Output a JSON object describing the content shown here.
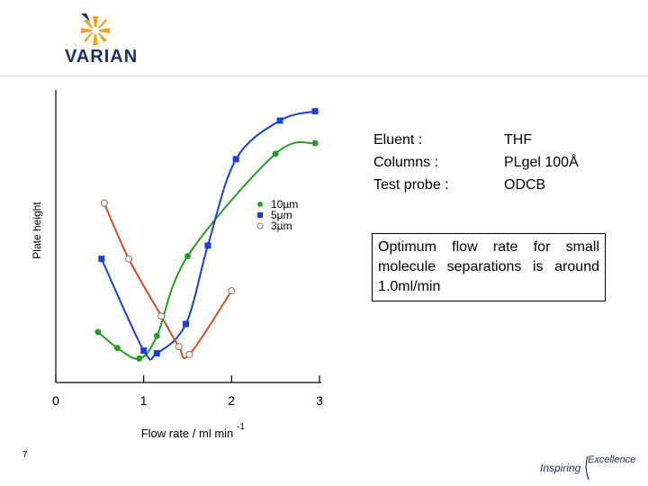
{
  "brand": {
    "name": "VARIAN",
    "footer_a": "Inspiring",
    "footer_b": "Excellence"
  },
  "page_number": "7",
  "info": {
    "rows": [
      {
        "label": "Eluent :",
        "value": "THF"
      },
      {
        "label": "Columns :",
        "value": "PLgel 100Å"
      },
      {
        "label": "Test probe :",
        "value": "ODCB"
      }
    ],
    "note": "Optimum flow rate for small molecule separations is around 1.0ml/min"
  },
  "colors": {
    "green": "#2a9a2a",
    "blue": "#1f3fcf",
    "orange": "#c8502a",
    "axis": "#000000",
    "brand_navy": "#1f2f5a"
  },
  "chart_data": {
    "type": "scatter",
    "title": "",
    "xlabel": "Flow rate / ml min",
    "xlabel_superscript": "-1",
    "ylabel": "Plate height",
    "xlim": [
      0,
      3
    ],
    "x_ticks": [
      "0",
      "1",
      "2",
      "3"
    ],
    "legend_position": "right",
    "series": [
      {
        "name": "10µm",
        "marker": "filled-circle",
        "color": "#2a9a2a",
        "points": [
          [
            0.48,
            3.8
          ],
          [
            0.7,
            2.6
          ],
          [
            0.95,
            1.8
          ],
          [
            1.15,
            3.5
          ],
          [
            1.5,
            9.5
          ],
          [
            2.5,
            17.2
          ],
          [
            2.95,
            18.0
          ]
        ]
      },
      {
        "name": "5µm",
        "marker": "filled-square",
        "color": "#1f3fcf",
        "points": [
          [
            0.52,
            9.3
          ],
          [
            1.0,
            2.4
          ],
          [
            1.15,
            2.2
          ],
          [
            1.48,
            4.4
          ],
          [
            1.73,
            10.3
          ],
          [
            2.05,
            16.8
          ],
          [
            2.55,
            19.7
          ],
          [
            2.95,
            20.4
          ]
        ]
      },
      {
        "name": "3µm",
        "marker": "open-circle",
        "color": "#c8502a",
        "points": [
          [
            0.55,
            13.5
          ],
          [
            0.83,
            9.3
          ],
          [
            1.2,
            5.0
          ],
          [
            1.4,
            2.7
          ],
          [
            1.52,
            2.1
          ],
          [
            2.0,
            6.9
          ]
        ]
      }
    ]
  }
}
